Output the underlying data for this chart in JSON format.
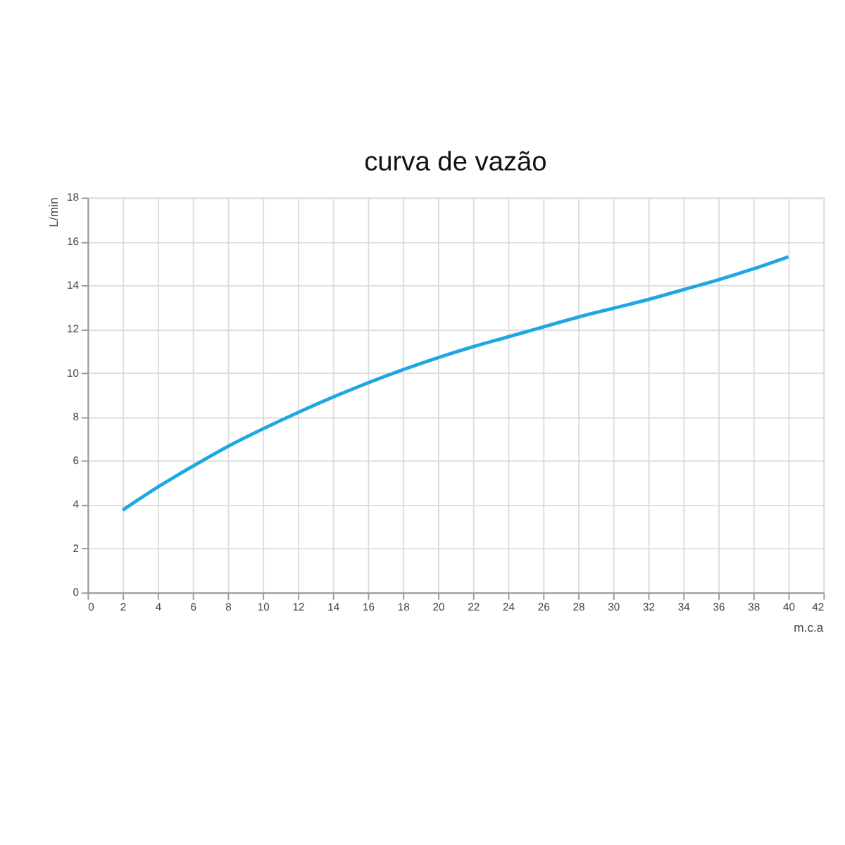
{
  "chart_data": {
    "type": "line",
    "title": "curva de vazão",
    "xlabel": "m.c.a",
    "ylabel": "L/min",
    "x": [
      2,
      4,
      6,
      8,
      10,
      12,
      14,
      16,
      18,
      20,
      22,
      24,
      26,
      28,
      30,
      32,
      34,
      36,
      38,
      40
    ],
    "series": [
      {
        "color": "#1ea7e1",
        "values": [
          3.75,
          4.8,
          5.75,
          6.65,
          7.45,
          8.2,
          8.9,
          9.55,
          10.15,
          10.7,
          11.2,
          11.65,
          12.1,
          12.55,
          12.95,
          13.35,
          13.8,
          14.25,
          14.75,
          15.3
        ]
      }
    ],
    "xlim": [
      0,
      42
    ],
    "xticks": [
      0,
      2,
      4,
      6,
      8,
      10,
      12,
      14,
      16,
      18,
      20,
      22,
      24,
      26,
      28,
      30,
      32,
      34,
      36,
      38,
      40,
      42
    ],
    "ylim": [
      0,
      18
    ],
    "yticks": [
      0,
      2,
      4,
      6,
      8,
      10,
      12,
      14,
      16,
      18
    ],
    "grid": true,
    "marker": "none",
    "line_style": "solid"
  }
}
